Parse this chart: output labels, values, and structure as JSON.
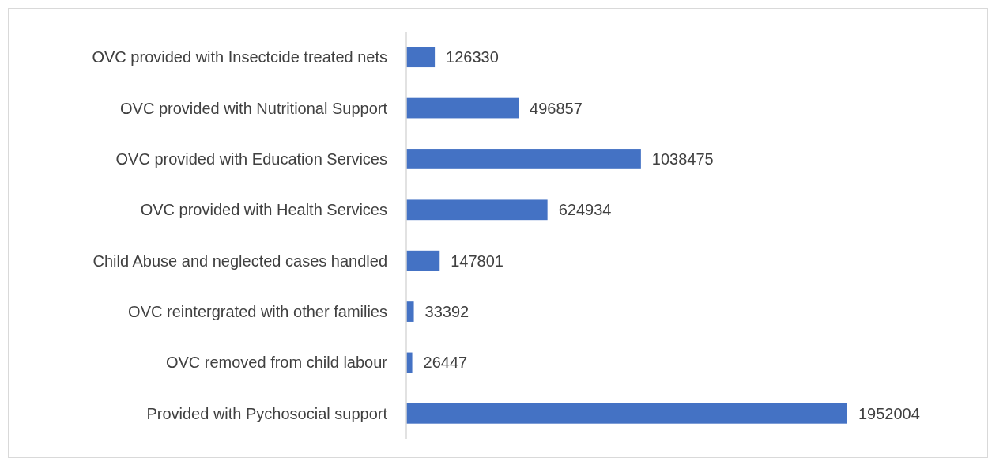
{
  "chart_data": {
    "type": "bar",
    "orientation": "horizontal",
    "color": "#4472c4",
    "data_labels": true,
    "categories": [
      "OVC provided with Insectcide treated nets",
      "OVC provided with Nutritional Support",
      "OVC provided with Education Services",
      "OVC provided with Health Services",
      "Child Abuse and neglected cases handled",
      "OVC reintergrated with other families",
      "OVC removed from child labour",
      "Provided with Pychosocial support"
    ],
    "values": [
      126330,
      496857,
      1038475,
      624934,
      147801,
      33392,
      26447,
      1952004
    ]
  }
}
